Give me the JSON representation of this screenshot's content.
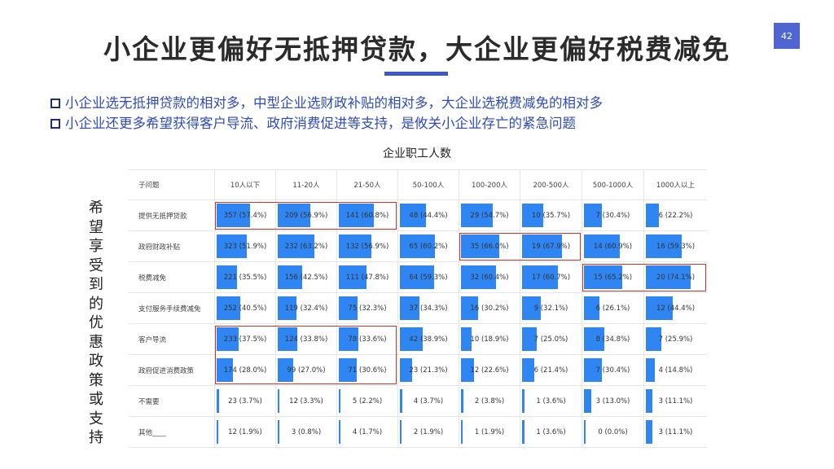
{
  "slide": {
    "title": "小企业更偏好无抵押贷款，大企业更偏好税费减免",
    "page_number": "42"
  },
  "bullets": [
    "小企业选无抵押贷款的相对多，中型企业选财政补贴的相对多，大企业选税费减免的相对多",
    "小企业还更多希望获得客户导流、政府消费促进等支持，是攸关小企业存亡的紧急问题"
  ],
  "table": {
    "caption": "企业职工人数",
    "side_label": "希望享受到的优惠政策或支持",
    "corner": "子问题",
    "columns": [
      "10人以下",
      "11-20人",
      "21-50人",
      "50-100人",
      "100-200人",
      "200-500人",
      "500-1000人",
      "1000人以上"
    ],
    "rows": [
      {
        "label": "提供无抵押贷款",
        "cells": [
          {
            "count": 357,
            "pct": 57.4,
            "text": "357 (57.4%)"
          },
          {
            "count": 209,
            "pct": 56.9,
            "text": "209 (56.9%)"
          },
          {
            "count": 141,
            "pct": 60.8,
            "text": "141 (60.8%)"
          },
          {
            "count": 48,
            "pct": 44.4,
            "text": "48 (44.4%)"
          },
          {
            "count": 29,
            "pct": 54.7,
            "text": "29 (54.7%)"
          },
          {
            "count": 10,
            "pct": 35.7,
            "text": "10 (35.7%)"
          },
          {
            "count": 7,
            "pct": 30.4,
            "text": "7 (30.4%)"
          },
          {
            "count": 6,
            "pct": 22.2,
            "text": "6 (22.2%)"
          }
        ]
      },
      {
        "label": "政府财政补贴",
        "cells": [
          {
            "count": 323,
            "pct": 51.9,
            "text": "323 (51.9%)"
          },
          {
            "count": 232,
            "pct": 63.2,
            "text": "232 (63.2%)"
          },
          {
            "count": 132,
            "pct": 56.9,
            "text": "132 (56.9%)"
          },
          {
            "count": 65,
            "pct": 60.2,
            "text": "65 (60.2%)"
          },
          {
            "count": 35,
            "pct": 66.0,
            "text": "35 (66.0%)"
          },
          {
            "count": 19,
            "pct": 67.9,
            "text": "19 (67.9%)"
          },
          {
            "count": 14,
            "pct": 60.9,
            "text": "14 (60.9%)"
          },
          {
            "count": 16,
            "pct": 59.3,
            "text": "16 (59.3%)"
          }
        ]
      },
      {
        "label": "税费减免",
        "cells": [
          {
            "count": 221,
            "pct": 35.5,
            "text": "221 (35.5%)"
          },
          {
            "count": 156,
            "pct": 42.5,
            "text": "156 (42.5%)"
          },
          {
            "count": 111,
            "pct": 47.8,
            "text": "111 (47.8%)"
          },
          {
            "count": 64,
            "pct": 59.3,
            "text": "64 (59.3%)"
          },
          {
            "count": 32,
            "pct": 60.4,
            "text": "32 (60.4%)"
          },
          {
            "count": 17,
            "pct": 60.7,
            "text": "17 (60.7%)"
          },
          {
            "count": 15,
            "pct": 65.2,
            "text": "15 (65.2%)"
          },
          {
            "count": 20,
            "pct": 74.1,
            "text": "20 (74.1%)"
          }
        ]
      },
      {
        "label": "支付服务手续费减免",
        "cells": [
          {
            "count": 252,
            "pct": 40.5,
            "text": "252 (40.5%)"
          },
          {
            "count": 119,
            "pct": 32.4,
            "text": "119 (32.4%)"
          },
          {
            "count": 75,
            "pct": 32.3,
            "text": "75 (32.3%)"
          },
          {
            "count": 37,
            "pct": 34.3,
            "text": "37 (34.3%)"
          },
          {
            "count": 16,
            "pct": 30.2,
            "text": "16 (30.2%)"
          },
          {
            "count": 9,
            "pct": 32.1,
            "text": "9 (32.1%)"
          },
          {
            "count": 6,
            "pct": 26.1,
            "text": "6 (26.1%)"
          },
          {
            "count": 12,
            "pct": 44.4,
            "text": "12 (44.4%)"
          }
        ]
      },
      {
        "label": "客户导流",
        "cells": [
          {
            "count": 233,
            "pct": 37.5,
            "text": "233 (37.5%)"
          },
          {
            "count": 124,
            "pct": 33.8,
            "text": "124 (33.8%)"
          },
          {
            "count": 78,
            "pct": 33.6,
            "text": "78 (33.6%)"
          },
          {
            "count": 42,
            "pct": 38.9,
            "text": "42 (38.9%)"
          },
          {
            "count": 10,
            "pct": 18.9,
            "text": "10 (18.9%)"
          },
          {
            "count": 7,
            "pct": 25.0,
            "text": "7 (25.0%)"
          },
          {
            "count": 8,
            "pct": 34.8,
            "text": "8 (34.8%)"
          },
          {
            "count": 7,
            "pct": 25.9,
            "text": "7 (25.9%)"
          }
        ]
      },
      {
        "label": "政府促进消费政策",
        "cells": [
          {
            "count": 174,
            "pct": 28.0,
            "text": "174 (28.0%)"
          },
          {
            "count": 99,
            "pct": 27.0,
            "text": "99 (27.0%)"
          },
          {
            "count": 71,
            "pct": 30.6,
            "text": "71 (30.6%)"
          },
          {
            "count": 23,
            "pct": 21.3,
            "text": "23 (21.3%)"
          },
          {
            "count": 12,
            "pct": 22.6,
            "text": "12 (22.6%)"
          },
          {
            "count": 6,
            "pct": 21.4,
            "text": "6 (21.4%)"
          },
          {
            "count": 7,
            "pct": 30.4,
            "text": "7 (30.4%)"
          },
          {
            "count": 4,
            "pct": 14.8,
            "text": "4 (14.8%)"
          }
        ]
      },
      {
        "label": "不需要",
        "cells": [
          {
            "count": 23,
            "pct": 3.7,
            "text": "23 (3.7%)"
          },
          {
            "count": 12,
            "pct": 3.3,
            "text": "12 (3.3%)"
          },
          {
            "count": 5,
            "pct": 2.2,
            "text": "5 (2.2%)"
          },
          {
            "count": 4,
            "pct": 3.7,
            "text": "4 (3.7%)"
          },
          {
            "count": 2,
            "pct": 3.8,
            "text": "2 (3.8%)"
          },
          {
            "count": 1,
            "pct": 3.6,
            "text": "1 (3.6%)"
          },
          {
            "count": 3,
            "pct": 13.0,
            "text": "3 (13.0%)"
          },
          {
            "count": 3,
            "pct": 11.1,
            "text": "3 (11.1%)"
          }
        ]
      },
      {
        "label": "其他____",
        "cells": [
          {
            "count": 12,
            "pct": 1.9,
            "text": "12 (1.9%)"
          },
          {
            "count": 3,
            "pct": 0.8,
            "text": "3 (0.8%)"
          },
          {
            "count": 4,
            "pct": 1.7,
            "text": "4 (1.7%)"
          },
          {
            "count": 2,
            "pct": 1.9,
            "text": "2 (1.9%)"
          },
          {
            "count": 1,
            "pct": 1.9,
            "text": "1 (1.9%)"
          },
          {
            "count": 1,
            "pct": 3.6,
            "text": "1 (3.6%)"
          },
          {
            "count": 0,
            "pct": 0.0,
            "text": "0 (0.0%)"
          },
          {
            "count": 3,
            "pct": 11.1,
            "text": "3 (11.1%)"
          }
        ]
      }
    ],
    "highlights": [
      {
        "row_start": 0,
        "row_end": 0,
        "col_start": 0,
        "col_end": 2
      },
      {
        "row_start": 1,
        "row_end": 1,
        "col_start": 4,
        "col_end": 5
      },
      {
        "row_start": 2,
        "row_end": 2,
        "col_start": 6,
        "col_end": 7
      },
      {
        "row_start": 4,
        "row_end": 5,
        "col_start": 0,
        "col_end": 2
      }
    ]
  },
  "colors": {
    "bar": "#2f86f2",
    "accent": "#3f58c8",
    "highlight": "#c9332d",
    "bullet_text": "#2f4bb8"
  }
}
